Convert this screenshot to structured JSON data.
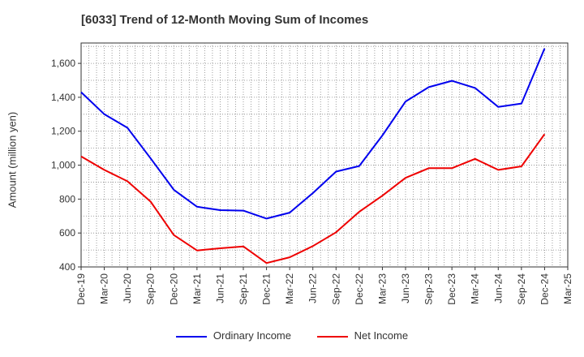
{
  "chart_data": {
    "type": "line",
    "title": "[6033]  Trend of 12-Month Moving Sum of Incomes",
    "xlabel": "",
    "ylabel": "Amount (million yen)",
    "ylim": [
      400,
      1720
    ],
    "yticks": [
      400,
      600,
      800,
      1000,
      1200,
      1400,
      1600
    ],
    "ytick_labels": [
      "400",
      "600",
      "800",
      "1,000",
      "1,200",
      "1,400",
      "1,600"
    ],
    "categories": [
      "Dec-19",
      "Mar-20",
      "Jun-20",
      "Sep-20",
      "Dec-20",
      "Mar-21",
      "Jun-21",
      "Sep-21",
      "Dec-21",
      "Mar-22",
      "Jun-22",
      "Sep-22",
      "Dec-22",
      "Mar-23",
      "Jun-23",
      "Sep-23",
      "Dec-23",
      "Mar-24",
      "Jun-24",
      "Sep-24",
      "Dec-24",
      "Mar-25"
    ],
    "grid": true,
    "legend_position": "bottom-center",
    "series": [
      {
        "name": "Ordinary Income",
        "color": "#0000ee",
        "values": [
          1430,
          1300,
          1220,
          1040,
          855,
          755,
          735,
          732,
          685,
          720,
          835,
          962,
          995,
          1175,
          1375,
          1460,
          1497,
          1455,
          1343,
          1363,
          1688,
          null
        ]
      },
      {
        "name": "Net Income",
        "color": "#ee0000",
        "values": [
          1052,
          972,
          905,
          785,
          588,
          497,
          510,
          521,
          423,
          457,
          523,
          604,
          725,
          820,
          925,
          982,
          982,
          1037,
          972,
          993,
          1183,
          null
        ]
      }
    ]
  }
}
